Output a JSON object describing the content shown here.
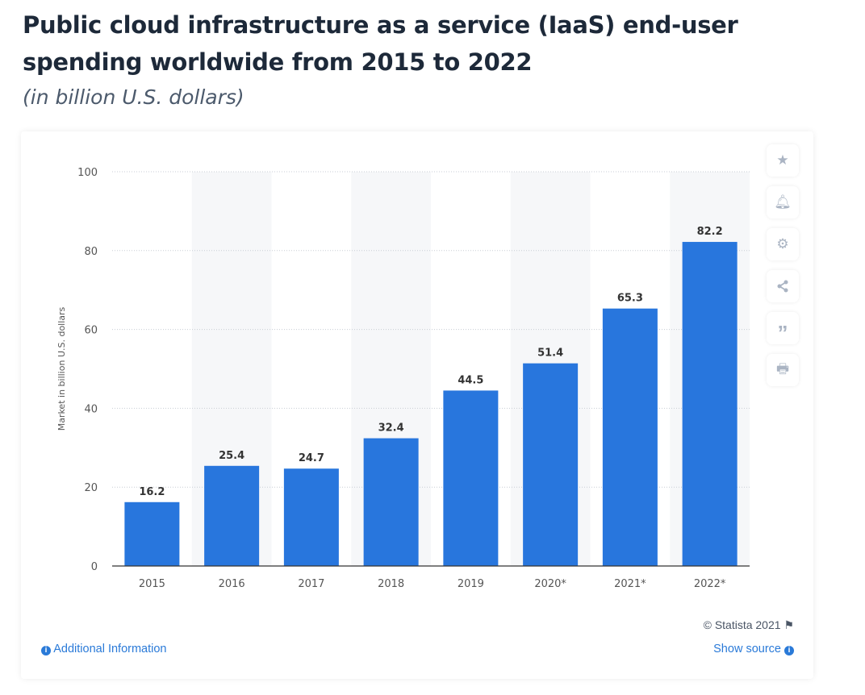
{
  "header": {
    "title": "Public cloud infrastructure as a service (IaaS) end-user spending worldwide from 2015 to 2022",
    "subtitle": "(in billion U.S. dollars)"
  },
  "toolbar": {
    "icons": [
      "star-icon",
      "bell-icon",
      "gear-icon",
      "share-icon",
      "quote-icon",
      "print-icon"
    ]
  },
  "footer": {
    "copyright": "© Statista 2021",
    "additional_info": "Additional Information",
    "show_source": "Show source"
  },
  "colors": {
    "bar": "#2876dd",
    "band": "#f6f7f9",
    "link": "#2a7ad8"
  },
  "chart_data": {
    "type": "bar",
    "title": "",
    "xlabel": "",
    "ylabel": "Market in billion U.S. dollars",
    "categories": [
      "2015",
      "2016",
      "2017",
      "2018",
      "2019",
      "2020*",
      "2021*",
      "2022*"
    ],
    "values": [
      16.2,
      25.4,
      24.7,
      32.4,
      44.5,
      51.4,
      65.3,
      82.2
    ],
    "data_labels": [
      "16.2",
      "25.4",
      "24.7",
      "32.4",
      "44.5",
      "51.4",
      "65.3",
      "82.2"
    ],
    "ylim": [
      0,
      100
    ],
    "yticks": [
      "0",
      "20",
      "40",
      "60",
      "80",
      "100"
    ],
    "grid": true,
    "legend": "none"
  }
}
